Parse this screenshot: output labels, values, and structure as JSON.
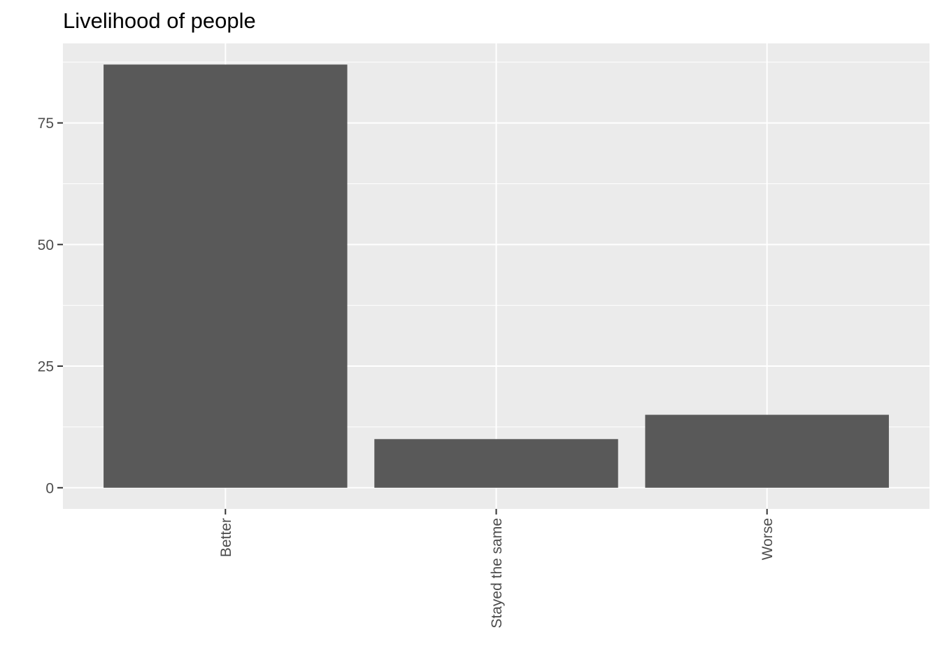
{
  "chart_data": {
    "type": "bar",
    "title": "Livelihood of people",
    "xlabel": "",
    "ylabel": "",
    "categories": [
      "Better",
      "Stayed the same",
      "Worse"
    ],
    "values": [
      87,
      10,
      15
    ],
    "ylim": [
      -4.35,
      91.35
    ],
    "yticks": [
      0,
      25,
      50,
      75
    ],
    "ytick_labels": [
      "0",
      "25",
      "50",
      "75"
    ],
    "x_tick_label_rotation": "vertical",
    "grid": true,
    "legend": "none",
    "colors": {
      "bar": "#595959",
      "panel": "#ebebeb",
      "grid_major": "#ffffff",
      "tick_text": "#4d4d4d",
      "tick_mark": "#333333",
      "title": "#000000"
    }
  }
}
